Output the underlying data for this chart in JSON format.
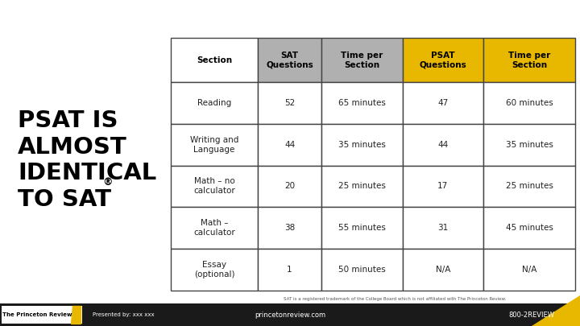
{
  "bg_color": "#ffffff",
  "header_col_bg": [
    "#ffffff",
    "#b0b0b0",
    "#b0b0b0",
    "#e8b800",
    "#e8b800"
  ],
  "border_color": "#444444",
  "header_text_color": "#000000",
  "cell_text_color": "#222222",
  "title_color": "#000000",
  "title_superscript": "®",
  "footer_bg": "#1a1a1a",
  "footer_text_color": "#ffffff",
  "yellow_accent": "#e8b800",
  "columns": [
    "Section",
    "SAT\nQuestions",
    "Time per\nSection",
    "PSAT\nQuestions",
    "Time per\nSection"
  ],
  "rows": [
    [
      "Reading",
      "52",
      "65 minutes",
      "47",
      "60 minutes"
    ],
    [
      "Writing and\nLanguage",
      "44",
      "35 minutes",
      "44",
      "35 minutes"
    ],
    [
      "Math – no\ncalculator",
      "20",
      "25 minutes",
      "17",
      "25 minutes"
    ],
    [
      "Math –\ncalculator",
      "38",
      "55 minutes",
      "31",
      "45 minutes"
    ],
    [
      "Essay\n(optional)",
      "1",
      "50 minutes",
      "N/A",
      "N/A"
    ]
  ],
  "footnote": "SAT is a registered trademark of the College Board which is not affiliated with The Princeton Review.",
  "footer_center": "princetonreview.com",
  "footer_right": "800-2REVIEW",
  "footer_logo_text": "The Princeton Review",
  "footer_presented": "Presented by: xxx xxx"
}
